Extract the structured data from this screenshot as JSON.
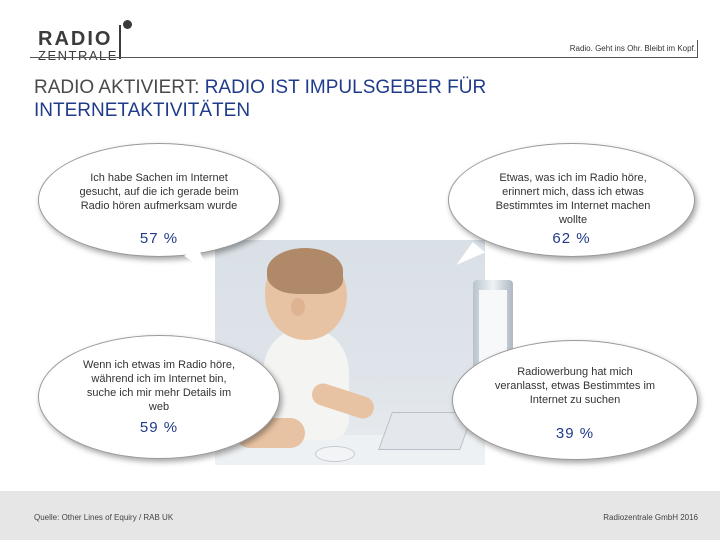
{
  "header": {
    "logo_top": "RADIO",
    "logo_bottom": "ZENTRALE",
    "tagline": "Radio. Geht ins Ohr. Bleibt im Kopf."
  },
  "title": {
    "prefix": "RADIO AKTIVIERT: ",
    "accent": "RADIO IST IMPULSGEBER FÜR INTERNETAKTIVITÄTEN"
  },
  "bubbles": [
    {
      "text": "Ich habe Sachen im Internet gesucht, auf die ich gerade beim Radio hören aufmerksam wurde",
      "percent": "57 %"
    },
    {
      "text": "Etwas, was ich im Radio höre, erinnert mich, dass ich etwas Bestimmtes im Internet machen wollte",
      "percent": "62 %"
    },
    {
      "text": "Wenn ich etwas im Radio höre, während ich im Internet bin, suche ich mir mehr Details im web",
      "percent": "59 %"
    },
    {
      "text": "Radiowerbung hat mich veranlasst, etwas Bestimmtes im Internet zu suchen",
      "percent": "39 %"
    }
  ],
  "colors": {
    "accent": "#1f3b8a",
    "text": "#4a4a4a",
    "footer_bg": "#e6e6e6"
  },
  "footer": {
    "source": "Quelle: Other Lines of Equiry / RAB UK",
    "copyright": "Radiozentrale GmbH 2016"
  }
}
